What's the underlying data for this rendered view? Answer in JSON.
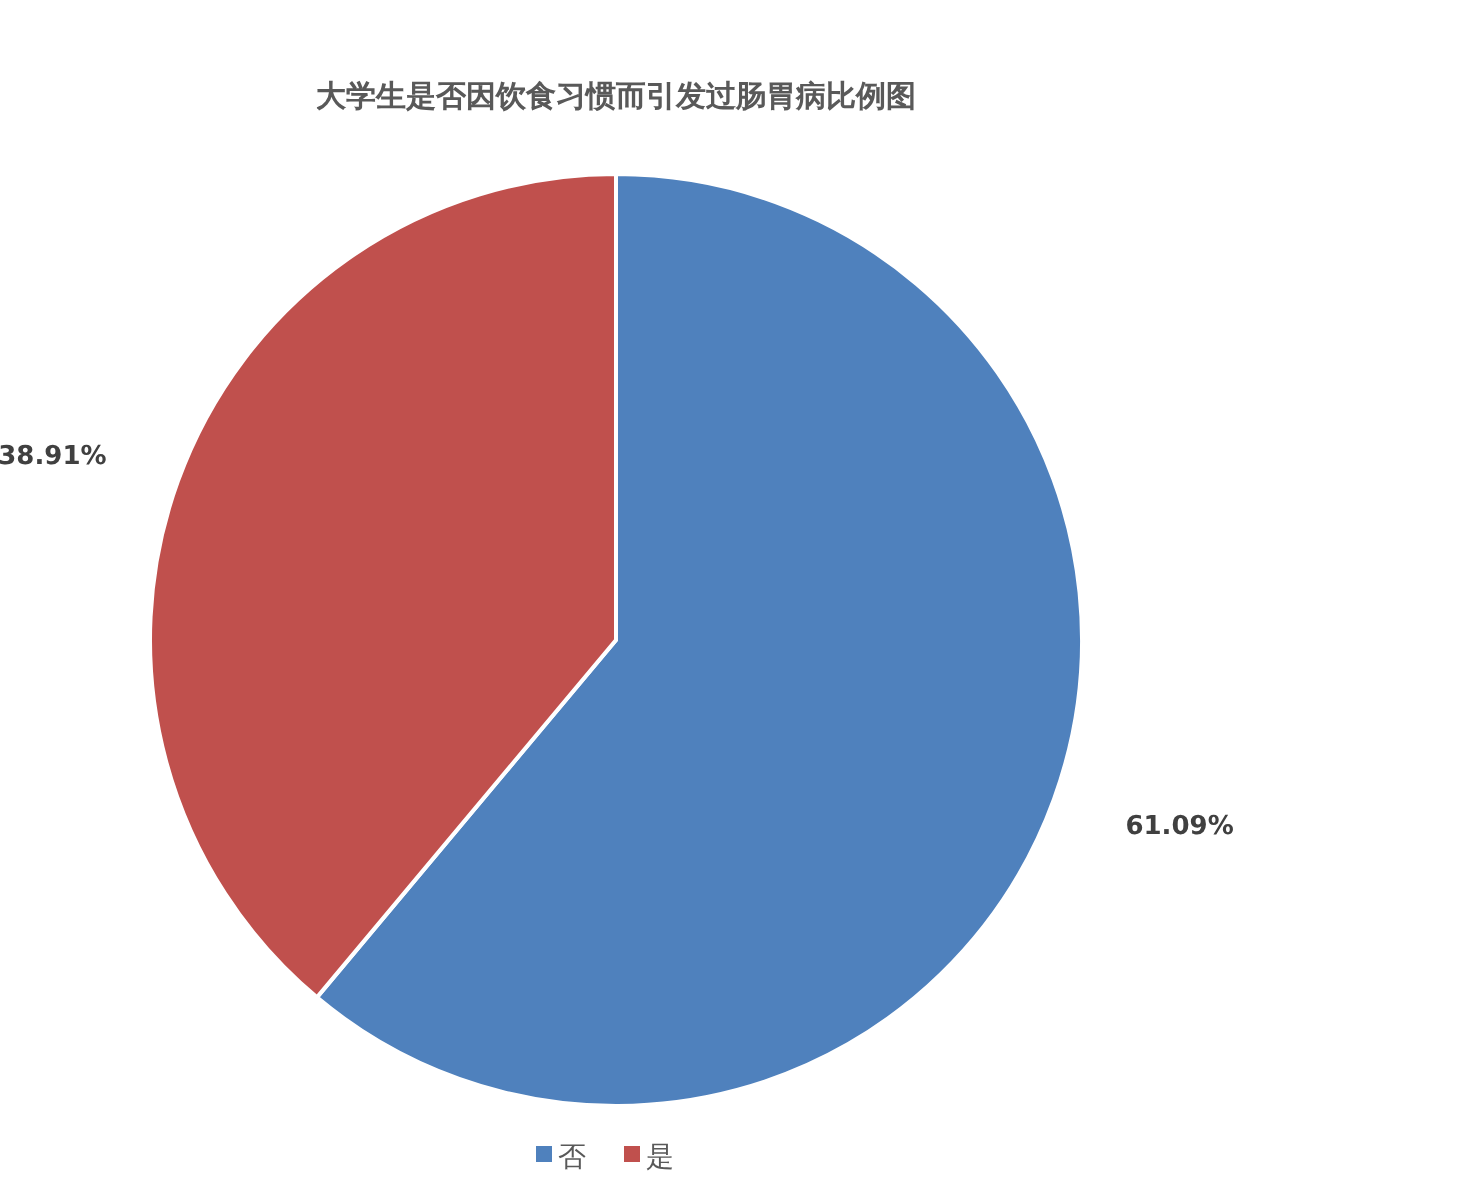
{
  "chart_data": {
    "type": "pie",
    "title": "大学生是否因饮食习惯而引发过肠胃病比例图",
    "categories": [
      "否",
      "是"
    ],
    "values": [
      61.09,
      38.91
    ],
    "colors": [
      "#4f81bd",
      "#c0504d"
    ],
    "value_labels": [
      "61.09%",
      "38.91%"
    ],
    "legend": "bottom"
  }
}
